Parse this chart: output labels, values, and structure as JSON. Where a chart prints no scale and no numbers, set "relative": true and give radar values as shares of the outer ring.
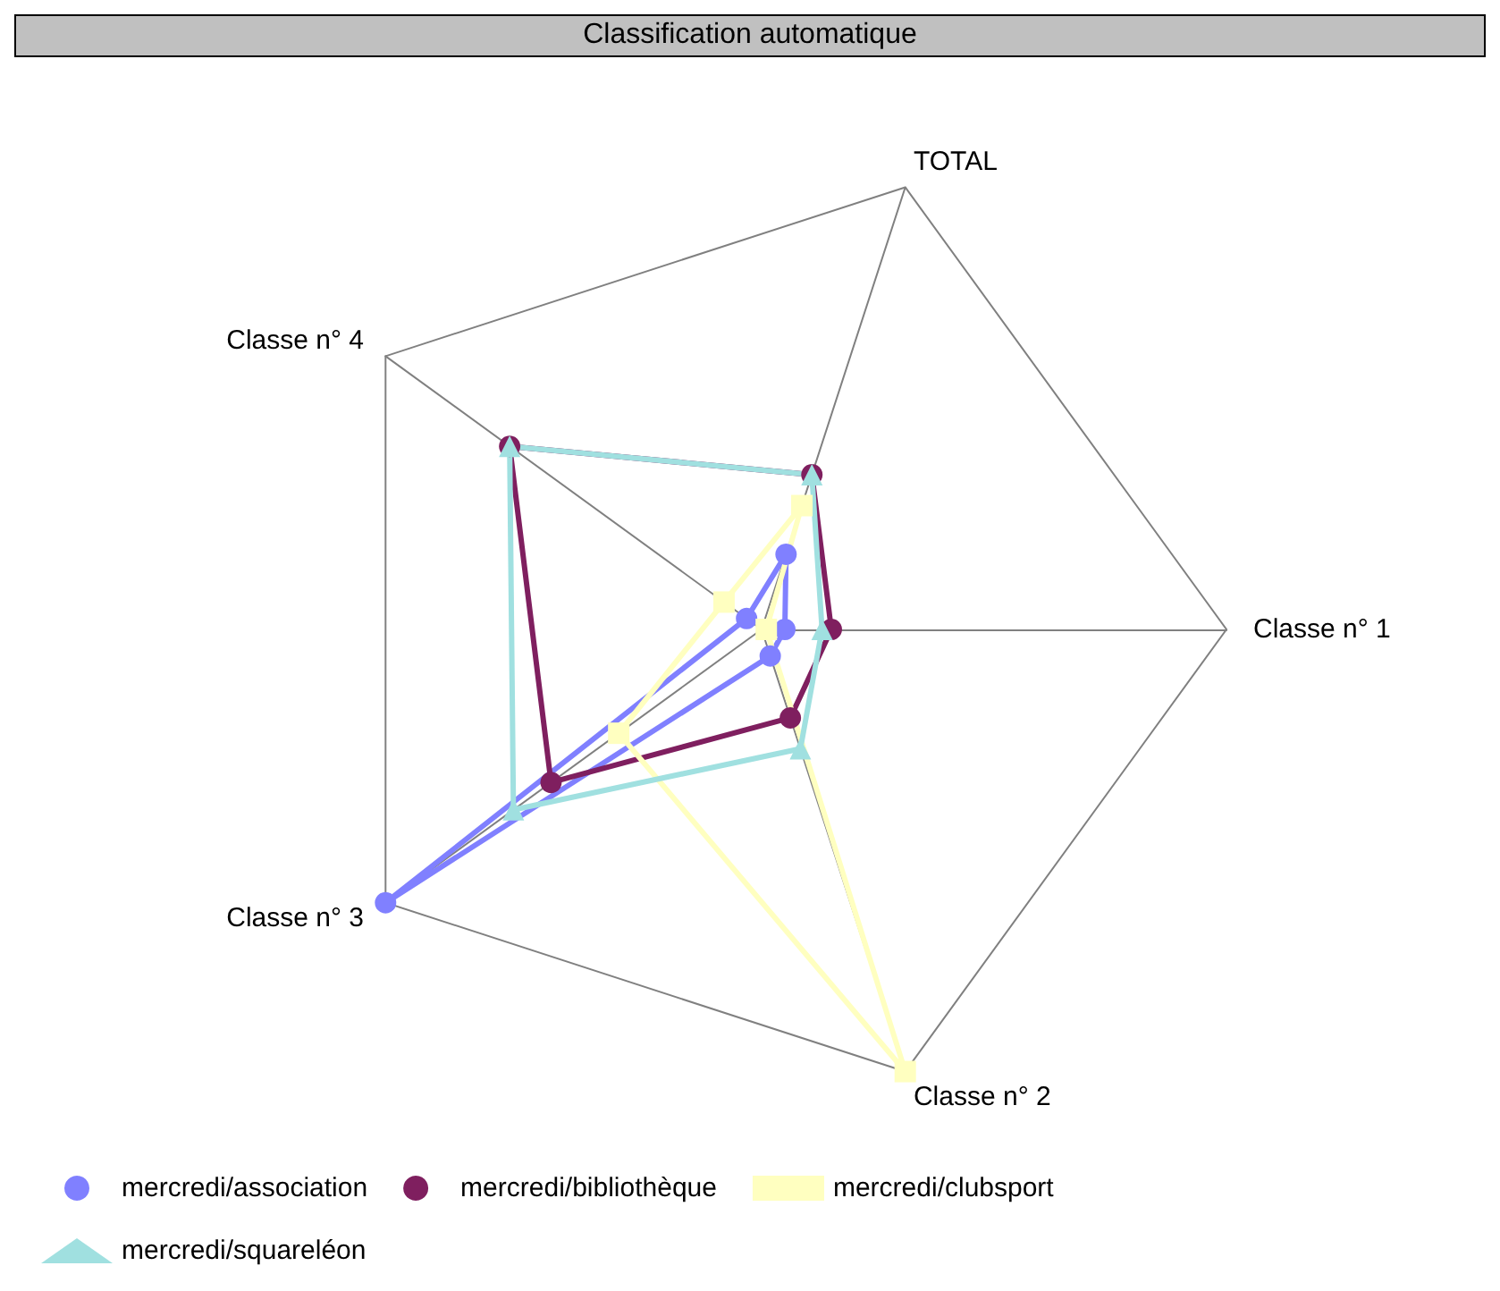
{
  "chart_data": {
    "type": "radar",
    "title": "Classification automatique",
    "relative": true,
    "legend": "bottom left",
    "categories": [
      "TOTAL",
      "Classe n° 1",
      "Classe n° 2",
      "Classe n° 3",
      "Classe n° 4"
    ],
    "series": [
      {
        "name": "mercredi/association",
        "color": "#8080ff",
        "marker": "circle",
        "values": [
          0.17,
          0.05,
          0.06,
          1.0,
          0.04
        ]
      },
      {
        "name": "mercredi/bibliothèque",
        "color": "#7f1f5f",
        "marker": "circle",
        "values": [
          0.35,
          0.15,
          0.2,
          0.56,
          0.67
        ]
      },
      {
        "name": "mercredi/clubsport",
        "color": "#ffffc0",
        "marker": "square",
        "values": [
          0.28,
          0.01,
          1.0,
          0.38,
          0.1
        ]
      },
      {
        "name": "mercredi/squareléon",
        "color": "#a0e0e0",
        "marker": "triangle",
        "values": [
          0.35,
          0.13,
          0.27,
          0.66,
          0.67
        ]
      }
    ]
  }
}
